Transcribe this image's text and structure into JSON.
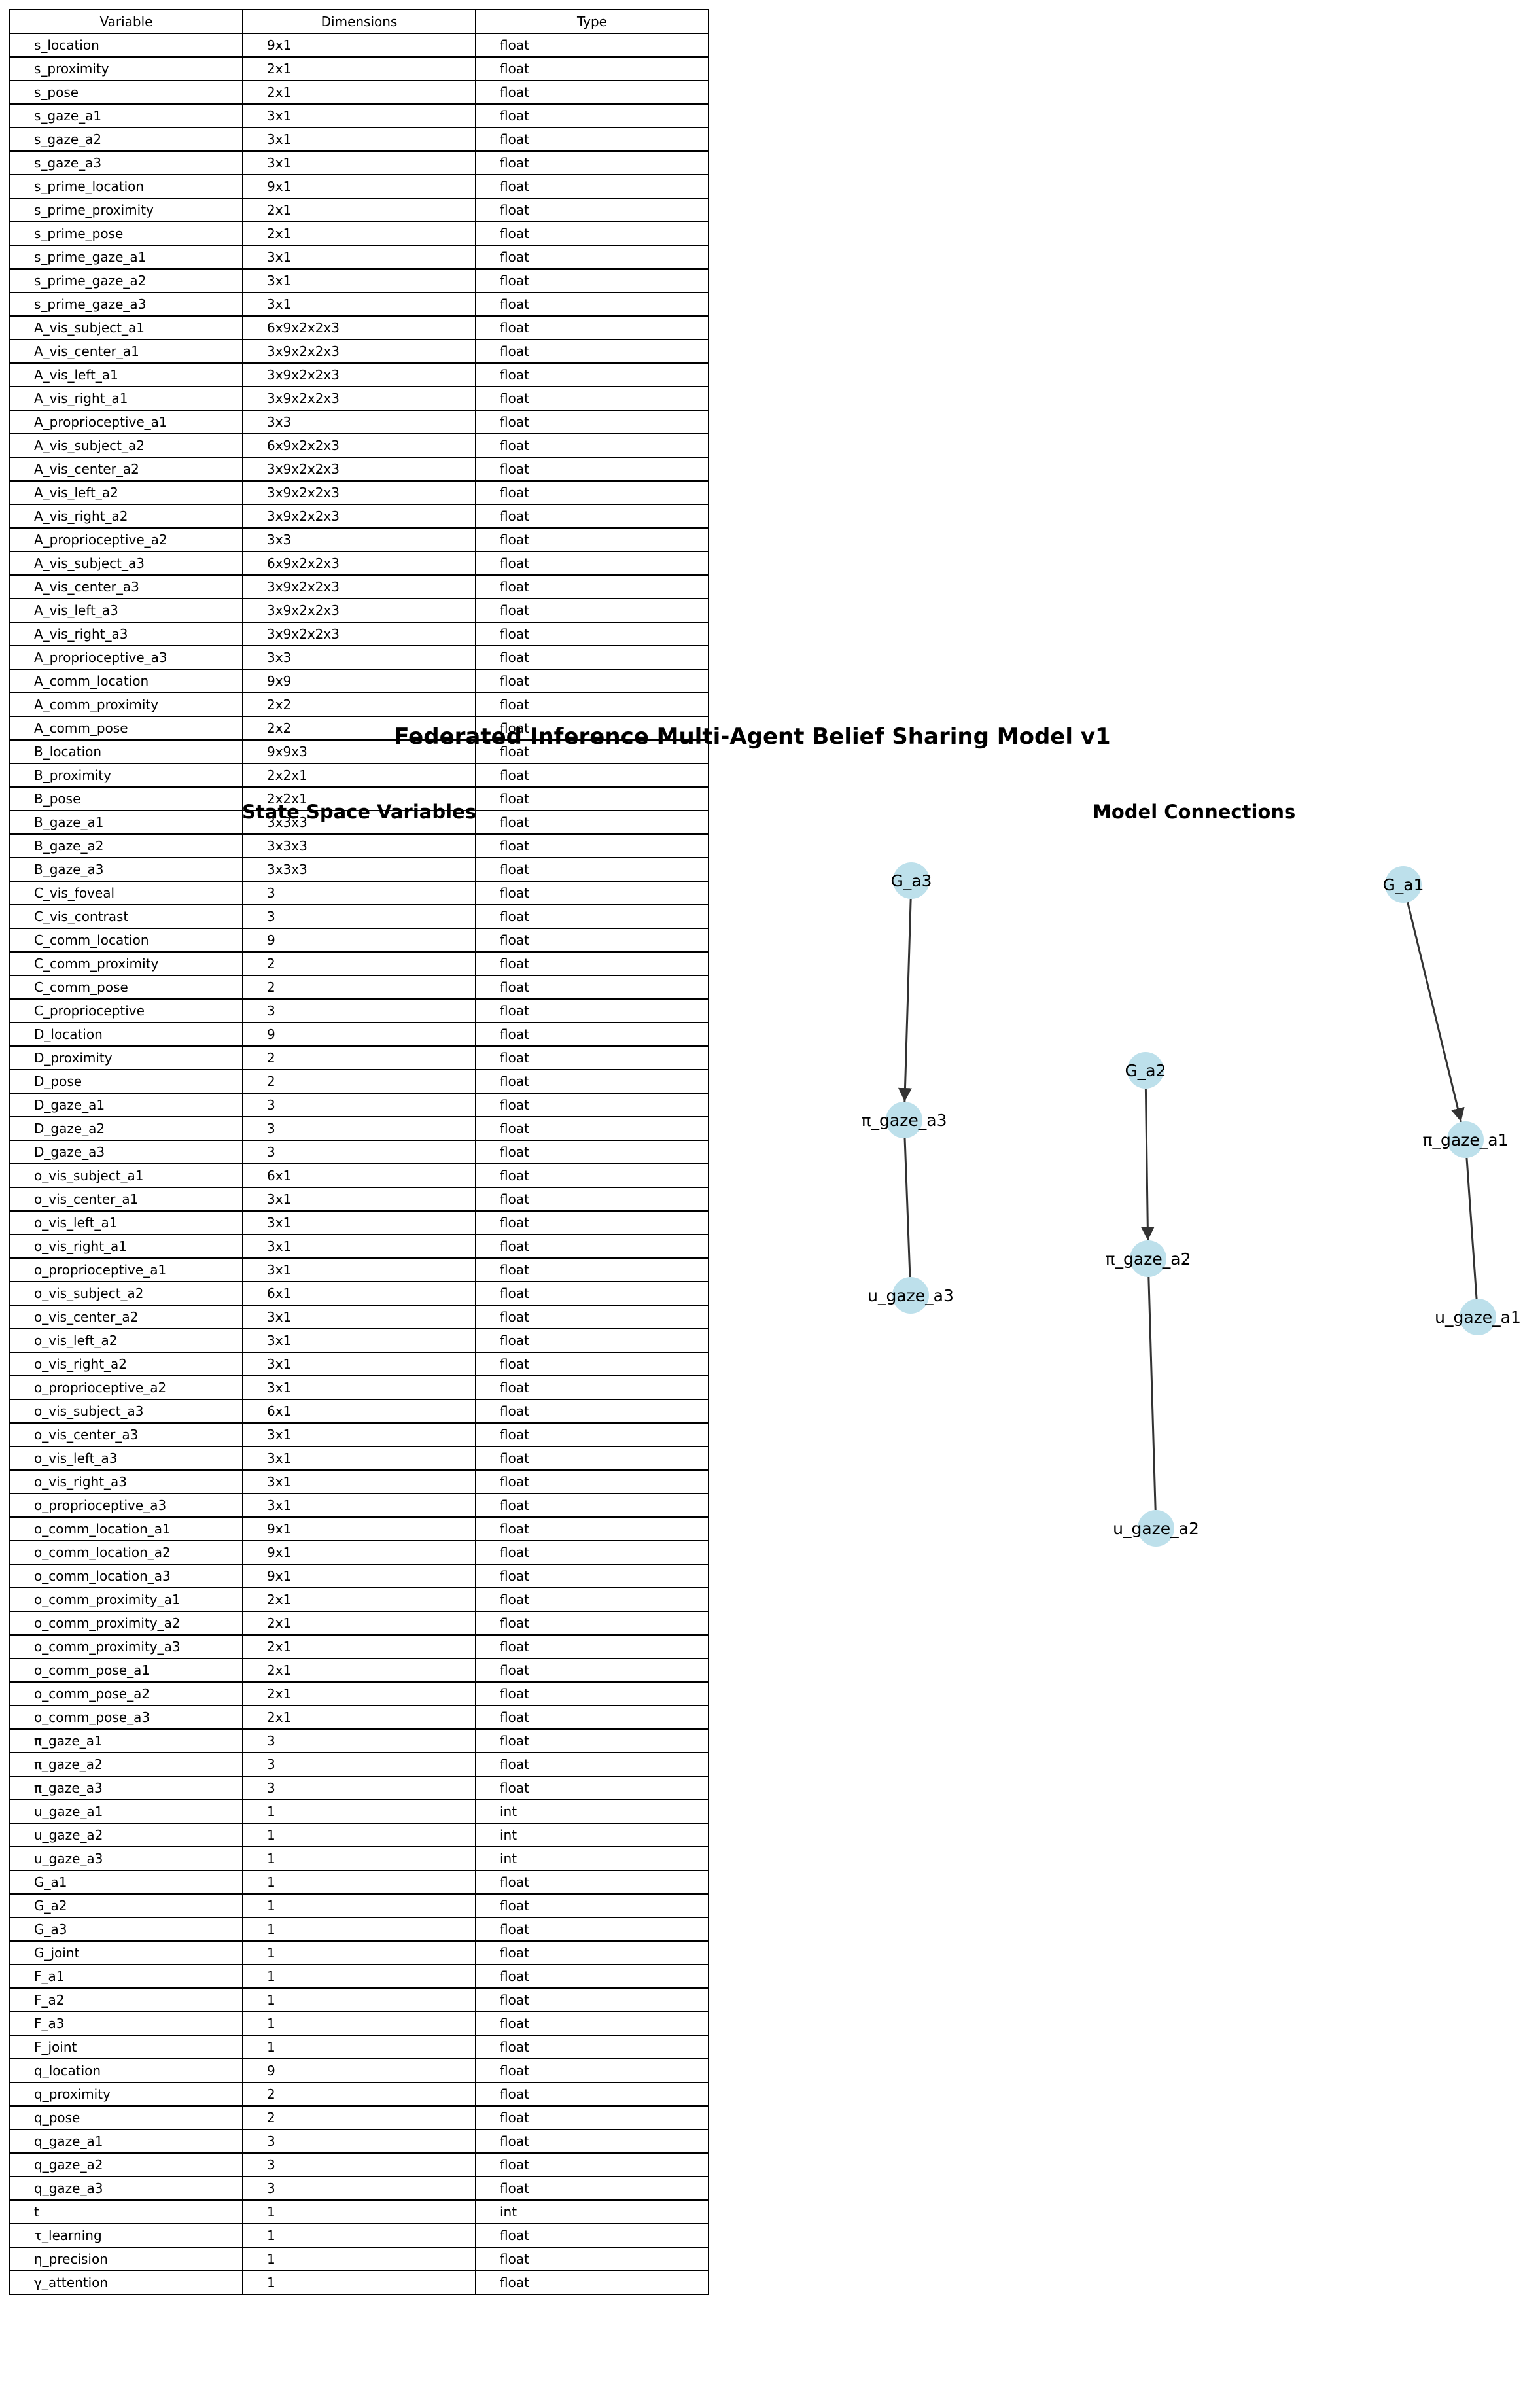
{
  "title": "Federated Inference Multi-Agent Belief Sharing Model v1",
  "table": {
    "title": "State Space Variables",
    "headers": [
      "Variable",
      "Dimensions",
      "Type"
    ],
    "rows": [
      [
        "s_location",
        "9x1",
        "float"
      ],
      [
        "s_proximity",
        "2x1",
        "float"
      ],
      [
        "s_pose",
        "2x1",
        "float"
      ],
      [
        "s_gaze_a1",
        "3x1",
        "float"
      ],
      [
        "s_gaze_a2",
        "3x1",
        "float"
      ],
      [
        "s_gaze_a3",
        "3x1",
        "float"
      ],
      [
        "s_prime_location",
        "9x1",
        "float"
      ],
      [
        "s_prime_proximity",
        "2x1",
        "float"
      ],
      [
        "s_prime_pose",
        "2x1",
        "float"
      ],
      [
        "s_prime_gaze_a1",
        "3x1",
        "float"
      ],
      [
        "s_prime_gaze_a2",
        "3x1",
        "float"
      ],
      [
        "s_prime_gaze_a3",
        "3x1",
        "float"
      ],
      [
        "A_vis_subject_a1",
        "6x9x2x2x3",
        "float"
      ],
      [
        "A_vis_center_a1",
        "3x9x2x2x3",
        "float"
      ],
      [
        "A_vis_left_a1",
        "3x9x2x2x3",
        "float"
      ],
      [
        "A_vis_right_a1",
        "3x9x2x2x3",
        "float"
      ],
      [
        "A_proprioceptive_a1",
        "3x3",
        "float"
      ],
      [
        "A_vis_subject_a2",
        "6x9x2x2x3",
        "float"
      ],
      [
        "A_vis_center_a2",
        "3x9x2x2x3",
        "float"
      ],
      [
        "A_vis_left_a2",
        "3x9x2x2x3",
        "float"
      ],
      [
        "A_vis_right_a2",
        "3x9x2x2x3",
        "float"
      ],
      [
        "A_proprioceptive_a2",
        "3x3",
        "float"
      ],
      [
        "A_vis_subject_a3",
        "6x9x2x2x3",
        "float"
      ],
      [
        "A_vis_center_a3",
        "3x9x2x2x3",
        "float"
      ],
      [
        "A_vis_left_a3",
        "3x9x2x2x3",
        "float"
      ],
      [
        "A_vis_right_a3",
        "3x9x2x2x3",
        "float"
      ],
      [
        "A_proprioceptive_a3",
        "3x3",
        "float"
      ],
      [
        "A_comm_location",
        "9x9",
        "float"
      ],
      [
        "A_comm_proximity",
        "2x2",
        "float"
      ],
      [
        "A_comm_pose",
        "2x2",
        "float"
      ],
      [
        "B_location",
        "9x9x3",
        "float"
      ],
      [
        "B_proximity",
        "2x2x1",
        "float"
      ],
      [
        "B_pose",
        "2x2x1",
        "float"
      ],
      [
        "B_gaze_a1",
        "3x3x3",
        "float"
      ],
      [
        "B_gaze_a2",
        "3x3x3",
        "float"
      ],
      [
        "B_gaze_a3",
        "3x3x3",
        "float"
      ],
      [
        "C_vis_foveal",
        "3",
        "float"
      ],
      [
        "C_vis_contrast",
        "3",
        "float"
      ],
      [
        "C_comm_location",
        "9",
        "float"
      ],
      [
        "C_comm_proximity",
        "2",
        "float"
      ],
      [
        "C_comm_pose",
        "2",
        "float"
      ],
      [
        "C_proprioceptive",
        "3",
        "float"
      ],
      [
        "D_location",
        "9",
        "float"
      ],
      [
        "D_proximity",
        "2",
        "float"
      ],
      [
        "D_pose",
        "2",
        "float"
      ],
      [
        "D_gaze_a1",
        "3",
        "float"
      ],
      [
        "D_gaze_a2",
        "3",
        "float"
      ],
      [
        "D_gaze_a3",
        "3",
        "float"
      ],
      [
        "o_vis_subject_a1",
        "6x1",
        "float"
      ],
      [
        "o_vis_center_a1",
        "3x1",
        "float"
      ],
      [
        "o_vis_left_a1",
        "3x1",
        "float"
      ],
      [
        "o_vis_right_a1",
        "3x1",
        "float"
      ],
      [
        "o_proprioceptive_a1",
        "3x1",
        "float"
      ],
      [
        "o_vis_subject_a2",
        "6x1",
        "float"
      ],
      [
        "o_vis_center_a2",
        "3x1",
        "float"
      ],
      [
        "o_vis_left_a2",
        "3x1",
        "float"
      ],
      [
        "o_vis_right_a2",
        "3x1",
        "float"
      ],
      [
        "o_proprioceptive_a2",
        "3x1",
        "float"
      ],
      [
        "o_vis_subject_a3",
        "6x1",
        "float"
      ],
      [
        "o_vis_center_a3",
        "3x1",
        "float"
      ],
      [
        "o_vis_left_a3",
        "3x1",
        "float"
      ],
      [
        "o_vis_right_a3",
        "3x1",
        "float"
      ],
      [
        "o_proprioceptive_a3",
        "3x1",
        "float"
      ],
      [
        "o_comm_location_a1",
        "9x1",
        "float"
      ],
      [
        "o_comm_location_a2",
        "9x1",
        "float"
      ],
      [
        "o_comm_location_a3",
        "9x1",
        "float"
      ],
      [
        "o_comm_proximity_a1",
        "2x1",
        "float"
      ],
      [
        "o_comm_proximity_a2",
        "2x1",
        "float"
      ],
      [
        "o_comm_proximity_a3",
        "2x1",
        "float"
      ],
      [
        "o_comm_pose_a1",
        "2x1",
        "float"
      ],
      [
        "o_comm_pose_a2",
        "2x1",
        "float"
      ],
      [
        "o_comm_pose_a3",
        "2x1",
        "float"
      ],
      [
        "π_gaze_a1",
        "3",
        "float"
      ],
      [
        "π_gaze_a2",
        "3",
        "float"
      ],
      [
        "π_gaze_a3",
        "3",
        "float"
      ],
      [
        "u_gaze_a1",
        "1",
        "int"
      ],
      [
        "u_gaze_a2",
        "1",
        "int"
      ],
      [
        "u_gaze_a3",
        "1",
        "int"
      ],
      [
        "G_a1",
        "1",
        "float"
      ],
      [
        "G_a2",
        "1",
        "float"
      ],
      [
        "G_a3",
        "1",
        "float"
      ],
      [
        "G_joint",
        "1",
        "float"
      ],
      [
        "F_a1",
        "1",
        "float"
      ],
      [
        "F_a2",
        "1",
        "float"
      ],
      [
        "F_a3",
        "1",
        "float"
      ],
      [
        "F_joint",
        "1",
        "float"
      ],
      [
        "q_location",
        "9",
        "float"
      ],
      [
        "q_proximity",
        "2",
        "float"
      ],
      [
        "q_pose",
        "2",
        "float"
      ],
      [
        "q_gaze_a1",
        "3",
        "float"
      ],
      [
        "q_gaze_a2",
        "3",
        "float"
      ],
      [
        "q_gaze_a3",
        "3",
        "float"
      ],
      [
        "t",
        "1",
        "int"
      ],
      [
        "τ_learning",
        "1",
        "float"
      ],
      [
        "η_precision",
        "1",
        "float"
      ],
      [
        "γ_attention",
        "1",
        "float"
      ]
    ]
  },
  "graph": {
    "title": "Model Connections",
    "node_color": "#add8e6",
    "edge_color": "#333333",
    "nodes": [
      {
        "id": "G_a3",
        "label": "G_a3"
      },
      {
        "id": "pi_gaze_a3",
        "label": "π_gaze_a3"
      },
      {
        "id": "u_gaze_a3",
        "label": "u_gaze_a3"
      },
      {
        "id": "G_a2",
        "label": "G_a2"
      },
      {
        "id": "pi_gaze_a2",
        "label": "π_gaze_a2"
      },
      {
        "id": "u_gaze_a2",
        "label": "u_gaze_a2"
      },
      {
        "id": "G_a1",
        "label": "G_a1"
      },
      {
        "id": "pi_gaze_a1",
        "label": "π_gaze_a1"
      },
      {
        "id": "u_gaze_a1",
        "label": "u_gaze_a1"
      }
    ],
    "edges": [
      {
        "from": "G_a3",
        "to": "pi_gaze_a3",
        "arrow": true
      },
      {
        "from": "pi_gaze_a3",
        "to": "u_gaze_a3",
        "arrow": false
      },
      {
        "from": "G_a2",
        "to": "pi_gaze_a2",
        "arrow": true
      },
      {
        "from": "pi_gaze_a2",
        "to": "u_gaze_a2",
        "arrow": false
      },
      {
        "from": "G_a1",
        "to": "pi_gaze_a1",
        "arrow": true
      },
      {
        "from": "pi_gaze_a1",
        "to": "u_gaze_a1",
        "arrow": false
      }
    ]
  }
}
